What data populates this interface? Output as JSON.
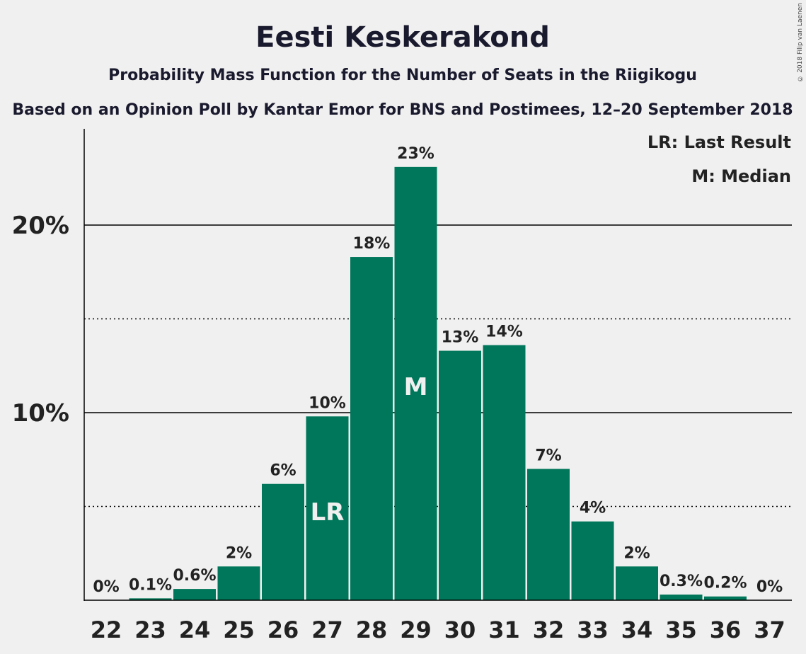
{
  "title": "Eesti Keskerakond",
  "subtitle": "Probability Mass Function for the Number of Seats in the Riigikogu",
  "subtitle2": "Based on an Opinion Poll by Kantar Emor for BNS and Postimees, 12–20 September 2018",
  "copyright": "© 2018 Filip van Laenen",
  "legend": {
    "lr": "LR: Last Result",
    "m": "M: Median"
  },
  "colors": {
    "bar": "#00775a",
    "background": "#f0f0f0",
    "text": "#222222"
  },
  "chart_data": {
    "type": "bar",
    "categories": [
      "22",
      "23",
      "24",
      "25",
      "26",
      "27",
      "28",
      "29",
      "30",
      "31",
      "32",
      "33",
      "34",
      "35",
      "36",
      "37"
    ],
    "values": [
      0,
      0.1,
      0.6,
      1.8,
      6.2,
      9.8,
      18.3,
      23.1,
      13.3,
      13.6,
      7.0,
      4.2,
      1.8,
      0.3,
      0.2,
      0
    ],
    "data_labels": [
      "0%",
      "0.1%",
      "0.6%",
      "2%",
      "6%",
      "10%",
      "18%",
      "23%",
      "13%",
      "14%",
      "7%",
      "4%",
      "2%",
      "0.3%",
      "0.2%",
      "0%"
    ],
    "ylim": [
      0,
      25
    ],
    "yticks": [
      {
        "value": 10,
        "label": "10%"
      },
      {
        "value": 20,
        "label": "20%"
      }
    ],
    "minor_gridlines": [
      5,
      15
    ],
    "markers": [
      {
        "category": "27",
        "text": "LR"
      },
      {
        "category": "29",
        "text": "M"
      }
    ],
    "legend_position": "top-right"
  }
}
